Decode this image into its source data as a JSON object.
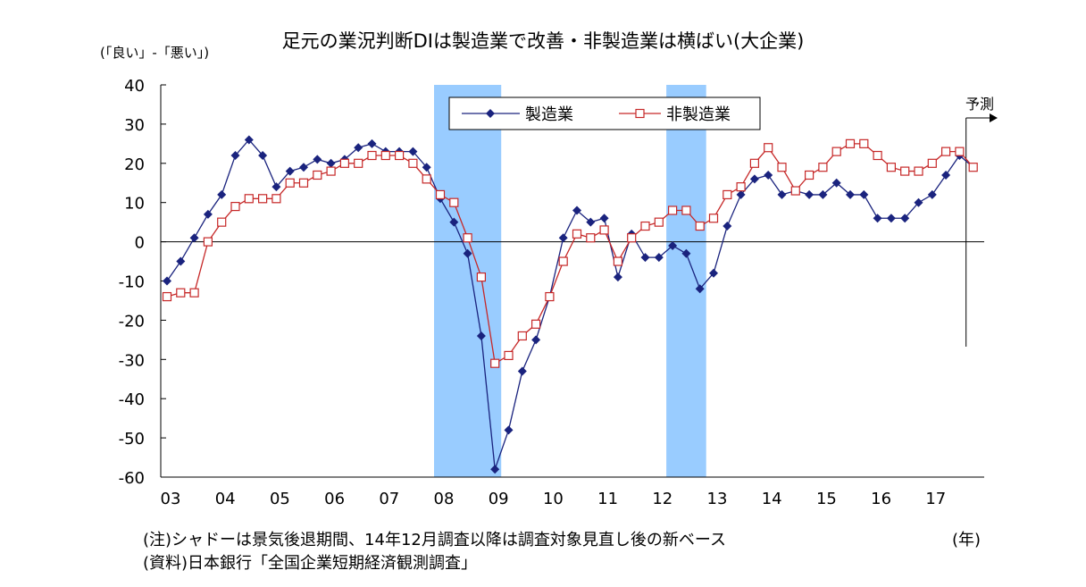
{
  "chart_data": {
    "type": "line",
    "title": "足元の業況判断DIは製造業で改善・非製造業は横ばい(大企業)",
    "ylabel": "(「良い」-「悪い」)",
    "xlabel": "(年)",
    "ylim": [
      -60,
      40
    ],
    "yticks": [
      40,
      30,
      20,
      10,
      0,
      -10,
      -20,
      -30,
      -40,
      -50,
      -60
    ],
    "xticks": [
      "03",
      "04",
      "05",
      "06",
      "07",
      "08",
      "09",
      "10",
      "11",
      "12",
      "13",
      "14",
      "15",
      "16",
      "17"
    ],
    "x_start": "2003Q1",
    "forecast_label": "予測",
    "shaded_periods": [
      {
        "from": "2008Q1",
        "to": "2009Q1"
      },
      {
        "from": "2012Q2",
        "to": "2012Q4"
      }
    ],
    "legend_position": "top-right",
    "series": [
      {
        "name": "製造業",
        "color": "#1a237e",
        "marker": "diamond-filled",
        "values": [
          -10,
          -5,
          1,
          7,
          12,
          22,
          26,
          22,
          14,
          18,
          19,
          21,
          20,
          21,
          24,
          25,
          23,
          23,
          23,
          19,
          11,
          5,
          -3,
          -24,
          -58,
          -48,
          -33,
          -25,
          -14,
          1,
          8,
          5,
          6,
          -9,
          2,
          -4,
          -4,
          -1,
          -3,
          -12,
          -8,
          4,
          12,
          16,
          17,
          12,
          13,
          12,
          12,
          15,
          12,
          12,
          6,
          6,
          6,
          10,
          12,
          17,
          22,
          19
        ]
      },
      {
        "name": "非製造業",
        "color": "#c62828",
        "marker": "square-open",
        "values": [
          -14,
          -13,
          -13,
          0,
          5,
          9,
          11,
          11,
          11,
          15,
          15,
          17,
          18,
          20,
          20,
          22,
          22,
          22,
          20,
          16,
          12,
          10,
          1,
          -9,
          -31,
          -29,
          -24,
          -21,
          -14,
          -5,
          2,
          1,
          3,
          -5,
          1,
          4,
          5,
          8,
          8,
          4,
          6,
          12,
          14,
          20,
          24,
          19,
          13,
          17,
          19,
          23,
          25,
          25,
          22,
          19,
          18,
          18,
          20,
          23,
          23,
          19
        ]
      }
    ]
  },
  "notes": {
    "shadow": "(注)シャドーは景気後退期間、14年12月調査以降は調査対象見直し後の新ベース",
    "source": "(資料)日本銀行「全国企業短期経済観測調査」"
  }
}
